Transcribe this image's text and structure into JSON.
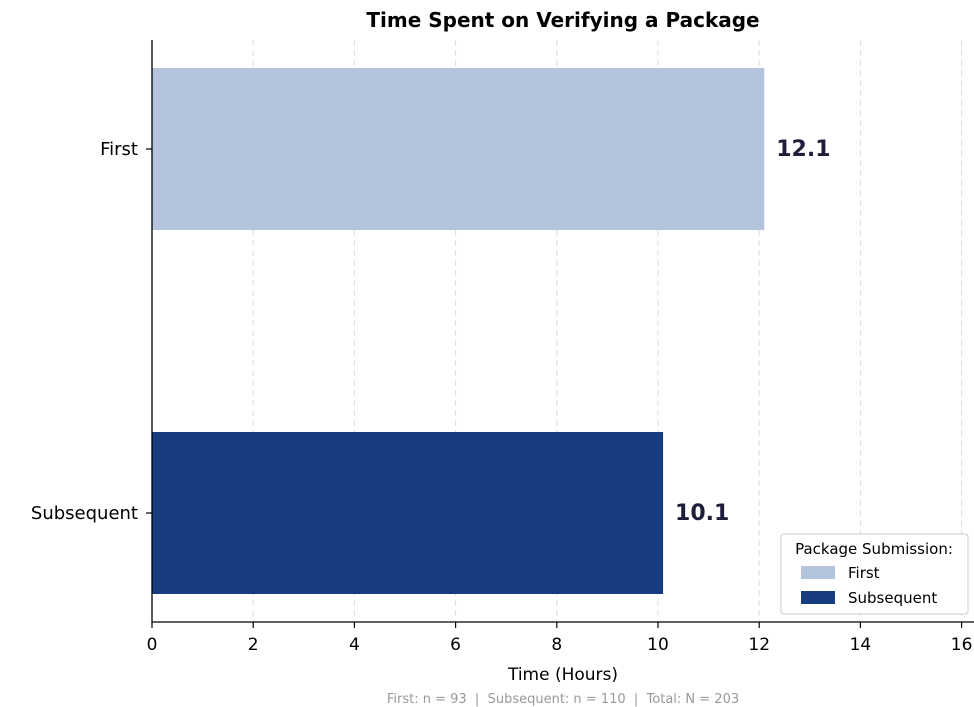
{
  "chart_data": {
    "type": "bar",
    "orientation": "horizontal",
    "title": "Time Spent on Verifying a Package",
    "xlabel": "Time (Hours)",
    "ylabel": "",
    "categories": [
      "First",
      "Subsequent"
    ],
    "values": [
      12.1,
      10.1
    ],
    "value_labels": [
      "12.1",
      "10.1"
    ],
    "colors": [
      "#b3c4dc",
      "#173d80"
    ],
    "xlim": [
      0,
      16
    ],
    "xticks": [
      0,
      2,
      4,
      6,
      8,
      10,
      12,
      14,
      16
    ],
    "grid": "vertical dashed",
    "legend": {
      "title": "Package Submission:",
      "placement": "bottom-right",
      "entries": [
        "First",
        "Subsequent"
      ]
    },
    "footnote": "First: n = 93  |  Subsequent: n = 110  |  Total: N = 203"
  }
}
